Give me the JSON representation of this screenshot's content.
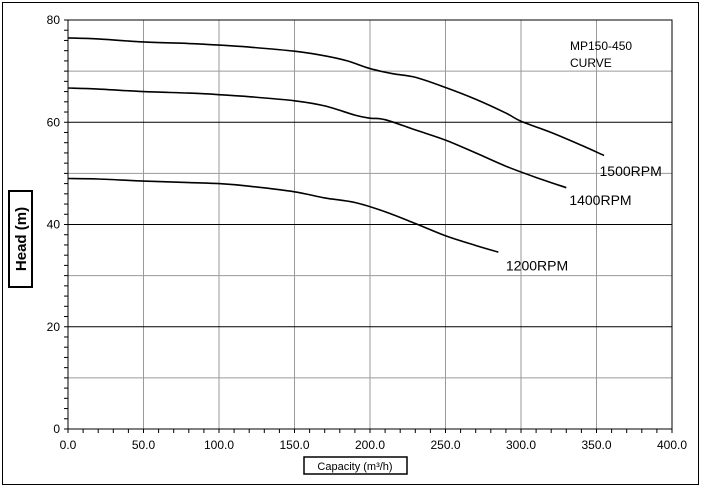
{
  "chart_data": {
    "type": "line",
    "title": "",
    "annotation_lines": [
      "MP150-450",
      "CURVE"
    ],
    "xlabel": "Capacity (m³/h)",
    "ylabel": "Head (m)",
    "xlim": [
      0,
      400
    ],
    "ylim": [
      0,
      80
    ],
    "x_ticks": [
      "0.0",
      "50.0",
      "100.0",
      "150.0",
      "200.0",
      "250.0",
      "300.0",
      "350.0",
      "400.0"
    ],
    "y_ticks": [
      "0",
      "20",
      "40",
      "60",
      "80"
    ],
    "grid": true,
    "series": [
      {
        "name": "1500RPM",
        "x": [
          0,
          20,
          50,
          80,
          100,
          120,
          150,
          170,
          185,
          200,
          215,
          230,
          250,
          270,
          290,
          300,
          320,
          340,
          355
        ],
        "y": [
          76.5,
          76.3,
          75.7,
          75.4,
          75.1,
          74.7,
          73.9,
          73.0,
          72.0,
          70.5,
          69.5,
          68.8,
          66.8,
          64.5,
          61.8,
          60.2,
          58.0,
          55.5,
          53.5
        ]
      },
      {
        "name": "1400RPM",
        "x": [
          0,
          20,
          50,
          80,
          100,
          120,
          150,
          170,
          190,
          200,
          210,
          230,
          250,
          270,
          290,
          310,
          330
        ],
        "y": [
          66.7,
          66.5,
          66.0,
          65.7,
          65.4,
          65.0,
          64.2,
          63.2,
          61.4,
          60.8,
          60.5,
          58.5,
          56.5,
          54.0,
          51.4,
          49.2,
          47.2
        ]
      },
      {
        "name": "1200RPM",
        "x": [
          0,
          20,
          50,
          80,
          100,
          120,
          150,
          170,
          190,
          210,
          230,
          250,
          270,
          285
        ],
        "y": [
          49.0,
          48.9,
          48.5,
          48.2,
          48.0,
          47.5,
          46.4,
          45.2,
          44.3,
          42.5,
          40.2,
          37.8,
          35.9,
          34.6
        ]
      }
    ],
    "series_label_positions": {
      "1500RPM": [
        352,
        49.5
      ],
      "1400RPM": [
        332,
        43.8
      ],
      "1200RPM": [
        290,
        31.0
      ]
    }
  }
}
